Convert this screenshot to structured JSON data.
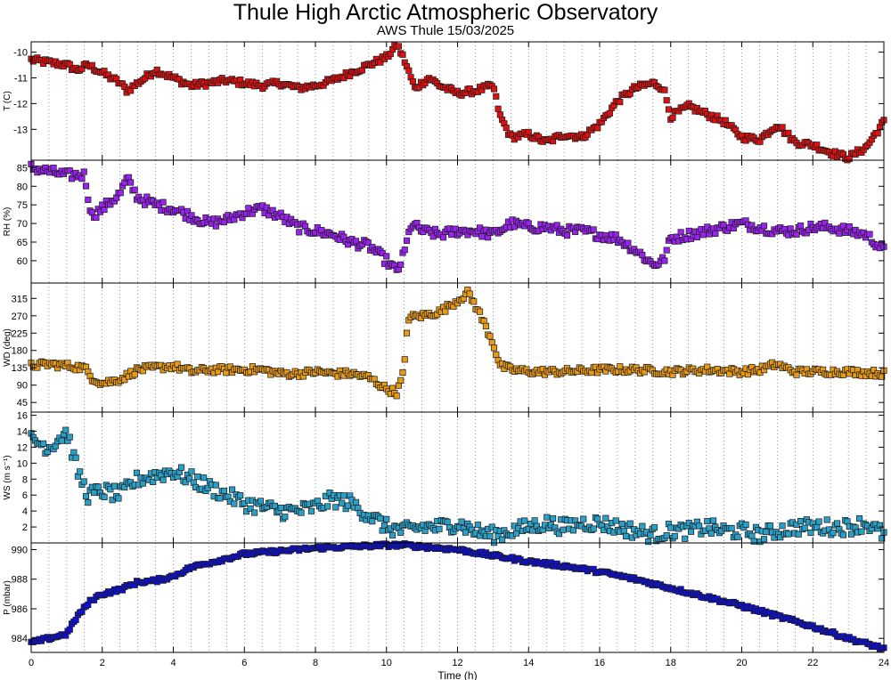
{
  "page": {
    "title": "Thule High Arctic Atmospheric Observatory",
    "subtitle": "AWS Thule 15/03/2025"
  },
  "chart_data": {
    "type": "scatter",
    "xlabel": "Time (h)",
    "xlim": [
      0,
      24
    ],
    "x_ticks": [
      0,
      2,
      4,
      6,
      8,
      10,
      12,
      14,
      16,
      18,
      20,
      22,
      24
    ],
    "x_minor_step": 0.5,
    "grid": "vertical dotted",
    "marker": "square",
    "panels": [
      {
        "id": "T",
        "ylabel": "T (C)",
        "ylim": [
          -14.2,
          -9.6
        ],
        "y_ticks": [
          -10,
          -11,
          -12,
          -13
        ],
        "y_tick_labels": [
          "-10",
          "-11",
          "-12",
          "-13"
        ],
        "color": "#dd1111",
        "scatter_amp": 0.12,
        "series": [
          [
            0,
            -10.3
          ],
          [
            0.5,
            -10.4
          ],
          [
            1,
            -10.5
          ],
          [
            1.3,
            -10.7
          ],
          [
            1.6,
            -10.5
          ],
          [
            2,
            -10.8
          ],
          [
            2.5,
            -11.2
          ],
          [
            2.7,
            -11.5
          ],
          [
            3,
            -11.2
          ],
          [
            3.5,
            -10.7
          ],
          [
            4,
            -11
          ],
          [
            4.5,
            -11.3
          ],
          [
            5,
            -11.2
          ],
          [
            5.5,
            -11.1
          ],
          [
            6,
            -11.2
          ],
          [
            6.5,
            -11.3
          ],
          [
            7,
            -11.2
          ],
          [
            7.5,
            -11.4
          ],
          [
            8,
            -11.3
          ],
          [
            8.5,
            -11.1
          ],
          [
            9,
            -10.8
          ],
          [
            9.5,
            -10.5
          ],
          [
            10,
            -10.2
          ],
          [
            10.3,
            -9.7
          ],
          [
            10.5,
            -10.3
          ],
          [
            10.8,
            -11.4
          ],
          [
            11.2,
            -11
          ],
          [
            11.5,
            -11.3
          ],
          [
            12,
            -11.6
          ],
          [
            12.5,
            -11.5
          ],
          [
            13,
            -11.3
          ],
          [
            13.2,
            -12.5
          ],
          [
            13.5,
            -13.3
          ],
          [
            14,
            -13.2
          ],
          [
            14.5,
            -13.5
          ],
          [
            15,
            -13.2
          ],
          [
            15.5,
            -13.3
          ],
          [
            16,
            -12.8
          ],
          [
            16.5,
            -11.9
          ],
          [
            17,
            -11.4
          ],
          [
            17.5,
            -11.2
          ],
          [
            17.8,
            -11.4
          ],
          [
            18,
            -12.5
          ],
          [
            18.5,
            -12.1
          ],
          [
            19,
            -12.4
          ],
          [
            19.5,
            -12.7
          ],
          [
            20,
            -13.3
          ],
          [
            20.5,
            -13.4
          ],
          [
            21,
            -12.8
          ],
          [
            21.5,
            -13.5
          ],
          [
            22,
            -13.6
          ],
          [
            22.5,
            -13.9
          ],
          [
            23,
            -14.1
          ],
          [
            23.5,
            -13.7
          ],
          [
            24,
            -12.7
          ]
        ]
      },
      {
        "id": "RH",
        "ylabel": "RH (%)",
        "ylim": [
          54,
          87
        ],
        "y_ticks": [
          60,
          65,
          70,
          75,
          80,
          85
        ],
        "y_tick_labels": [
          "60",
          "65",
          "70",
          "75",
          "80",
          "85"
        ],
        "color": "#9922ee",
        "scatter_amp": 1.3,
        "series": [
          [
            0,
            85
          ],
          [
            0.5,
            84
          ],
          [
            1,
            83
          ],
          [
            1.5,
            83
          ],
          [
            1.7,
            72
          ],
          [
            2,
            74
          ],
          [
            2.5,
            78
          ],
          [
            2.7,
            82
          ],
          [
            3,
            77
          ],
          [
            3.5,
            75
          ],
          [
            4,
            74
          ],
          [
            4.5,
            72
          ],
          [
            5,
            70
          ],
          [
            5.5,
            71
          ],
          [
            6,
            73
          ],
          [
            6.5,
            74
          ],
          [
            7,
            72
          ],
          [
            7.5,
            69
          ],
          [
            8,
            68
          ],
          [
            8.5,
            67
          ],
          [
            9,
            65
          ],
          [
            9.5,
            64
          ],
          [
            10,
            60
          ],
          [
            10.3,
            57
          ],
          [
            10.5,
            62
          ],
          [
            10.7,
            70
          ],
          [
            11,
            68
          ],
          [
            11.5,
            67
          ],
          [
            12,
            68
          ],
          [
            12.5,
            68
          ],
          [
            13,
            67
          ],
          [
            13.5,
            70
          ],
          [
            14,
            69
          ],
          [
            14.5,
            69
          ],
          [
            15,
            68
          ],
          [
            15.5,
            68
          ],
          [
            16,
            67
          ],
          [
            16.5,
            66
          ],
          [
            17,
            63
          ],
          [
            17.5,
            59
          ],
          [
            17.8,
            60
          ],
          [
            18,
            66
          ],
          [
            18.5,
            67
          ],
          [
            19,
            68
          ],
          [
            19.5,
            69
          ],
          [
            20,
            70
          ],
          [
            20.5,
            69
          ],
          [
            21,
            68
          ],
          [
            21.5,
            68
          ],
          [
            22,
            69
          ],
          [
            22.5,
            69
          ],
          [
            23,
            68
          ],
          [
            23.5,
            67
          ],
          [
            24,
            63
          ]
        ]
      },
      {
        "id": "WD",
        "ylabel": "WD (deg)",
        "ylim": [
          20,
          355
        ],
        "y_ticks": [
          45,
          90,
          135,
          180,
          225,
          270,
          315
        ],
        "y_tick_labels": [
          "45",
          "90",
          "135",
          "180",
          "225",
          "270",
          "315"
        ],
        "color": "#e89a16",
        "scatter_amp": 9,
        "series": [
          [
            0,
            140
          ],
          [
            0.5,
            145
          ],
          [
            1,
            140
          ],
          [
            1.5,
            135
          ],
          [
            1.7,
            110
          ],
          [
            2,
            95
          ],
          [
            2.5,
            105
          ],
          [
            3,
            130
          ],
          [
            3.5,
            135
          ],
          [
            4,
            140
          ],
          [
            4.5,
            125
          ],
          [
            5,
            130
          ],
          [
            5.5,
            130
          ],
          [
            6,
            130
          ],
          [
            6.5,
            130
          ],
          [
            7,
            120
          ],
          [
            7.5,
            120
          ],
          [
            8,
            125
          ],
          [
            8.5,
            120
          ],
          [
            9,
            120
          ],
          [
            9.5,
            110
          ],
          [
            10,
            80
          ],
          [
            10.3,
            70
          ],
          [
            10.5,
            130
          ],
          [
            10.6,
            265
          ],
          [
            11,
            270
          ],
          [
            11.5,
            280
          ],
          [
            12,
            310
          ],
          [
            12.3,
            330
          ],
          [
            12.6,
            280
          ],
          [
            13,
            200
          ],
          [
            13.2,
            140
          ],
          [
            13.5,
            130
          ],
          [
            14,
            125
          ],
          [
            15,
            125
          ],
          [
            16,
            130
          ],
          [
            17,
            130
          ],
          [
            18,
            125
          ],
          [
            19,
            130
          ],
          [
            20,
            125
          ],
          [
            20.5,
            130
          ],
          [
            21,
            145
          ],
          [
            21.2,
            135
          ],
          [
            21.5,
            125
          ],
          [
            22,
            125
          ],
          [
            23,
            125
          ],
          [
            24,
            120
          ]
        ]
      },
      {
        "id": "WS",
        "ylabel": "WS (m s⁻¹)",
        "ylim": [
          0,
          16.4
        ],
        "y_ticks": [
          2,
          4,
          6,
          8,
          10,
          12,
          14,
          16
        ],
        "y_tick_labels": [
          "2",
          "4",
          "6",
          "8",
          "10",
          "12",
          "14",
          "16"
        ],
        "color": "#2aa0c8",
        "scatter_amp": 1.0,
        "series": [
          [
            0,
            13
          ],
          [
            0.5,
            12
          ],
          [
            1,
            14
          ],
          [
            1.3,
            9
          ],
          [
            1.6,
            6
          ],
          [
            2,
            6.5
          ],
          [
            2.5,
            6
          ],
          [
            3,
            8
          ],
          [
            3.5,
            8.5
          ],
          [
            4,
            9
          ],
          [
            4.5,
            8
          ],
          [
            5,
            7
          ],
          [
            5.5,
            6
          ],
          [
            6,
            5
          ],
          [
            6.5,
            4.5
          ],
          [
            7,
            4
          ],
          [
            7.5,
            4
          ],
          [
            8,
            4.5
          ],
          [
            8.5,
            5.5
          ],
          [
            9,
            5
          ],
          [
            9.5,
            3.5
          ],
          [
            10,
            2
          ],
          [
            10.5,
            1.5
          ],
          [
            11,
            2
          ],
          [
            11.5,
            2
          ],
          [
            12,
            2.5
          ],
          [
            12.5,
            1.5
          ],
          [
            13,
            1
          ],
          [
            13.5,
            1.5
          ],
          [
            14,
            2
          ],
          [
            14.5,
            2.5
          ],
          [
            15,
            2
          ],
          [
            15.5,
            2.5
          ],
          [
            16,
            2.5
          ],
          [
            16.5,
            2
          ],
          [
            17,
            1.5
          ],
          [
            17.5,
            1
          ],
          [
            18,
            1.5
          ],
          [
            18.5,
            1.5
          ],
          [
            19,
            2
          ],
          [
            19.5,
            1.5
          ],
          [
            20,
            1.5
          ],
          [
            20.5,
            1
          ],
          [
            21,
            1.5
          ],
          [
            21.5,
            2
          ],
          [
            22,
            2
          ],
          [
            22.5,
            2
          ],
          [
            23,
            2
          ],
          [
            23.5,
            2.5
          ],
          [
            24,
            1
          ]
        ]
      },
      {
        "id": "P",
        "ylabel": "P (mbar)",
        "ylim": [
          983.05,
          990.45
        ],
        "y_ticks": [
          984,
          986,
          988,
          990
        ],
        "y_tick_labels": [
          "984",
          "986",
          "988",
          "990"
        ],
        "color": "#1010dd",
        "scatter_amp": 0.12,
        "series": [
          [
            0,
            983.7
          ],
          [
            0.5,
            984
          ],
          [
            1,
            984.3
          ],
          [
            1.3,
            985.5
          ],
          [
            1.7,
            986.6
          ],
          [
            2,
            987
          ],
          [
            2.5,
            987.3
          ],
          [
            3,
            987.8
          ],
          [
            3.5,
            987.9
          ],
          [
            4,
            988.2
          ],
          [
            4.5,
            988.8
          ],
          [
            5,
            989.1
          ],
          [
            5.5,
            989.4
          ],
          [
            6,
            989.7
          ],
          [
            7,
            989.9
          ],
          [
            8,
            990.1
          ],
          [
            9,
            990.2
          ],
          [
            10,
            990.3
          ],
          [
            10.5,
            990.3
          ],
          [
            11,
            990.2
          ],
          [
            12,
            990
          ],
          [
            13,
            989.6
          ],
          [
            14,
            989.2
          ],
          [
            15,
            988.9
          ],
          [
            16,
            988.5
          ],
          [
            17,
            988
          ],
          [
            18,
            987.4
          ],
          [
            19,
            986.8
          ],
          [
            20,
            986.2
          ],
          [
            21,
            985.5
          ],
          [
            22,
            984.8
          ],
          [
            23,
            984
          ],
          [
            24,
            983.3
          ]
        ]
      }
    ]
  }
}
